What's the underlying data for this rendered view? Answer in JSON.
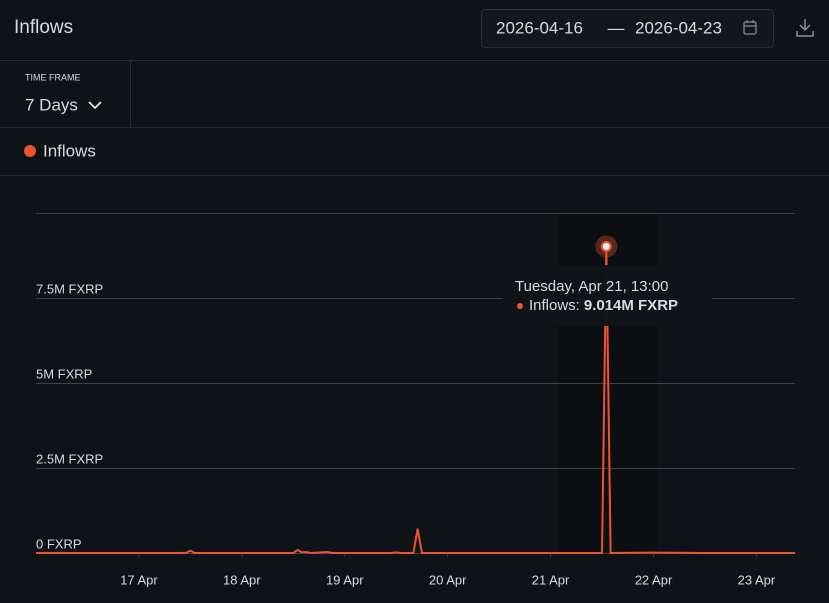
{
  "header": {
    "title": "Inflows"
  },
  "date_range": {
    "start": "2026-04-16",
    "separator": "—",
    "end": "2026-04-23"
  },
  "time_frame": {
    "label": "TIME FRAME",
    "value": "7 Days"
  },
  "chart_data": {
    "type": "line",
    "x": [
      "2026-04-16T00:00",
      "2026-04-17T11:00",
      "2026-04-17T12:00",
      "2026-04-17T13:00",
      "2026-04-18T12:00",
      "2026-04-18T13:00",
      "2026-04-18T14:00",
      "2026-04-18T15:00",
      "2026-04-18T16:00",
      "2026-04-18T20:00",
      "2026-04-18T21:00",
      "2026-04-19T11:00",
      "2026-04-19T12:00",
      "2026-04-19T13:00",
      "2026-04-19T16:00",
      "2026-04-19T17:00",
      "2026-04-19T18:00",
      "2026-04-20T00:00",
      "2026-04-21T12:00",
      "2026-04-21T13:00",
      "2026-04-21T14:00",
      "2026-04-22T00:00",
      "2026-04-22T12:00",
      "2026-04-23T09:00"
    ],
    "series": [
      {
        "name": "Inflows",
        "color": "#e8552f",
        "values": [
          0,
          0,
          70000,
          0,
          0,
          90000,
          20000,
          30000,
          0,
          30000,
          0,
          0,
          20000,
          0,
          0,
          700000,
          0,
          0,
          0,
          9014000,
          0,
          10000,
          0,
          0
        ]
      }
    ],
    "xlim": [
      "2026-04-16T00:00",
      "2026-04-23T09:00"
    ],
    "xticks": [
      {
        "value": "2026-04-17T00:00",
        "label": "17 Apr"
      },
      {
        "value": "2026-04-18T00:00",
        "label": "18 Apr"
      },
      {
        "value": "2026-04-19T00:00",
        "label": "19 Apr"
      },
      {
        "value": "2026-04-20T00:00",
        "label": "20 Apr"
      },
      {
        "value": "2026-04-21T00:00",
        "label": "21 Apr"
      },
      {
        "value": "2026-04-22T00:00",
        "label": "22 Apr"
      },
      {
        "value": "2026-04-23T00:00",
        "label": "23 Apr"
      }
    ],
    "ylim": [
      0,
      10000000
    ],
    "yticks": [
      {
        "value": 0,
        "label": "0 FXRP"
      },
      {
        "value": 2500000,
        "label": "2.5M FXRP"
      },
      {
        "value": 5000000,
        "label": "5M FXRP"
      },
      {
        "value": 7500000,
        "label": "7.5M FXRP"
      }
    ],
    "grid": true,
    "tooltip": {
      "x": "2026-04-21T13:00",
      "title": "Tuesday, Apr 21, 13:00",
      "label": "Inflows:",
      "value": 9014000,
      "value_label": "9.014M FXRP"
    }
  }
}
